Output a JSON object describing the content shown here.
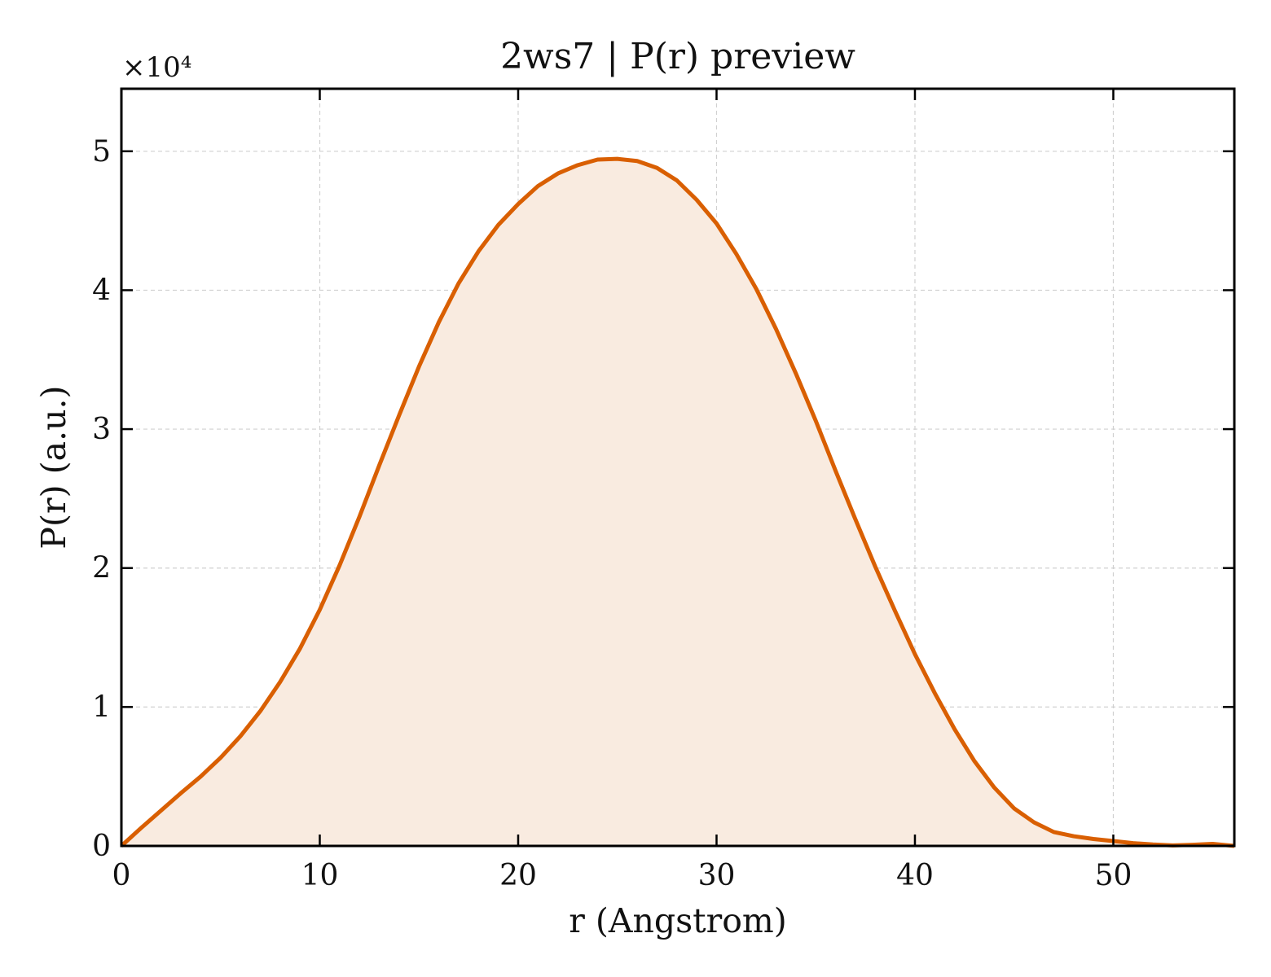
{
  "chart_data": {
    "type": "area",
    "title": "2ws7 | P(r) preview",
    "xlabel": "r (Angstrom)",
    "ylabel": "P(r) (a.u.)",
    "y_offset_label": "×10⁴",
    "y_scale": 10000,
    "xlim": [
      0,
      56.1
    ],
    "ylim": [
      0,
      54500
    ],
    "x_ticks": [
      0,
      10,
      20,
      30,
      40,
      50
    ],
    "x_tick_labels": [
      "0",
      "10",
      "20",
      "30",
      "40",
      "50"
    ],
    "y_ticks": [
      0,
      10000,
      20000,
      30000,
      40000,
      50000
    ],
    "y_tick_labels": [
      "0",
      "1",
      "2",
      "3",
      "4",
      "5"
    ],
    "grid": true,
    "line_color": "#d95f02",
    "fill_color": "#f9ebe0",
    "series": [
      {
        "x": [
          0,
          1,
          2,
          3,
          4,
          5,
          6,
          7,
          8,
          9,
          10,
          11,
          12,
          13,
          14,
          15,
          16,
          17,
          18,
          19,
          20,
          21,
          22,
          23,
          24,
          25,
          26,
          27,
          28,
          29,
          30,
          31,
          32,
          33,
          34,
          35,
          36,
          37,
          38,
          39,
          40,
          41,
          42,
          43,
          44,
          45,
          46,
          47,
          48,
          49,
          50,
          51,
          52,
          53,
          54,
          55,
          56.1
        ],
        "y": [
          0,
          1300,
          2550,
          3800,
          5000,
          6350,
          7900,
          9700,
          11800,
          14200,
          17000,
          20200,
          23700,
          27400,
          31000,
          34500,
          37700,
          40500,
          42800,
          44700,
          46200,
          47500,
          48400,
          49000,
          49400,
          49450,
          49300,
          48800,
          47900,
          46500,
          44800,
          42600,
          40100,
          37200,
          34000,
          30600,
          27000,
          23500,
          20100,
          16900,
          13800,
          11000,
          8400,
          6100,
          4200,
          2700,
          1700,
          1000,
          700,
          500,
          350,
          200,
          100,
          40,
          80,
          150,
          0
        ]
      }
    ]
  }
}
